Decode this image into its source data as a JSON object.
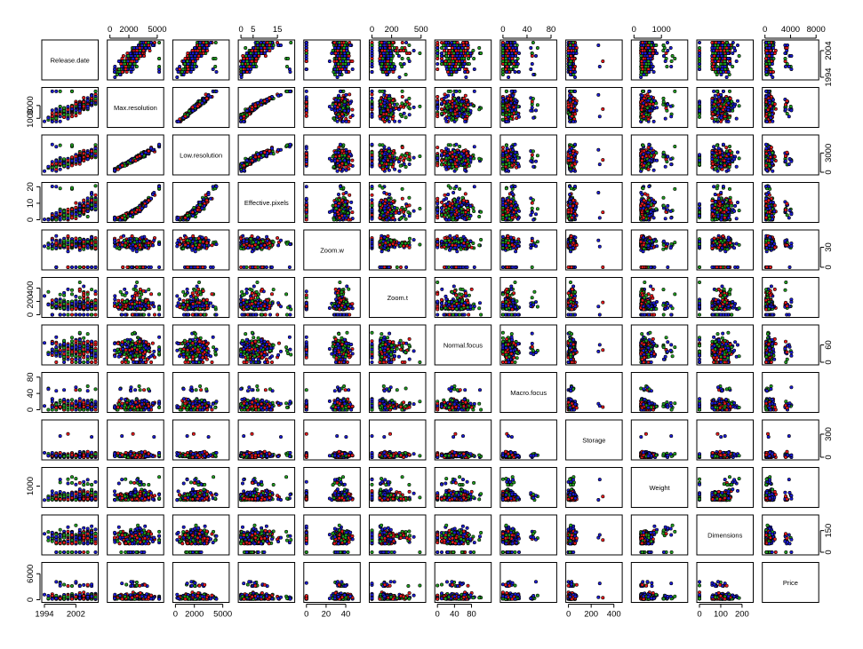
{
  "chart_data": {
    "type": "scatter",
    "kind": "scatterplot-matrix",
    "variables": [
      "Release.date",
      "Max.resolution",
      "Low.resolution",
      "Effective.pixels",
      "Zoom.w",
      "Zoom.t",
      "Normal.focus",
      "Macro.focus",
      "Storage",
      "Weight",
      "Dimensions",
      "Price"
    ],
    "ranges": [
      [
        1994,
        2007
      ],
      [
        0,
        5400
      ],
      [
        0,
        5400
      ],
      [
        0,
        21
      ],
      [
        0,
        52
      ],
      [
        0,
        520
      ],
      [
        0,
        120
      ],
      [
        0,
        85
      ],
      [
        0,
        450
      ],
      [
        0,
        1860
      ],
      [
        0,
        240
      ],
      [
        0,
        8000
      ]
    ],
    "axis_ticks": {
      "top": [
        {
          "column": 1,
          "ticks": [
            0,
            2000,
            5000
          ]
        },
        {
          "column": 3,
          "ticks": [
            0,
            5,
            15
          ]
        },
        {
          "column": 5,
          "ticks": [
            0,
            200,
            500
          ]
        },
        {
          "column": 7,
          "ticks": [
            0,
            40,
            80
          ]
        },
        {
          "column": 9,
          "ticks": [
            0,
            1000
          ]
        },
        {
          "column": 11,
          "ticks": [
            0,
            4000,
            8000
          ]
        }
      ],
      "bottom": [
        {
          "column": 0,
          "ticks": [
            1994,
            2002
          ]
        },
        {
          "column": 2,
          "ticks": [
            0,
            2000,
            5000
          ]
        },
        {
          "column": 4,
          "ticks": [
            0,
            20,
            40
          ]
        },
        {
          "column": 6,
          "ticks": [
            0,
            40,
            80
          ]
        },
        {
          "column": 8,
          "ticks": [
            0,
            200,
            400
          ]
        },
        {
          "column": 10,
          "ticks": [
            0,
            100,
            200
          ]
        }
      ],
      "left": [
        {
          "row": 1,
          "ticks": [
            1000,
            3000
          ]
        },
        {
          "row": 3,
          "ticks": [
            0,
            10,
            20
          ]
        },
        {
          "row": 5,
          "ticks": [
            0,
            200,
            400
          ]
        },
        {
          "row": 7,
          "ticks": [
            0,
            40,
            80
          ]
        },
        {
          "row": 9,
          "ticks": [
            1000
          ]
        },
        {
          "row": 11,
          "ticks": [
            0,
            6000
          ]
        }
      ],
      "right": [
        {
          "row": 0,
          "ticks": [
            1994,
            2004
          ]
        },
        {
          "row": 2,
          "ticks": [
            0,
            3000
          ]
        },
        {
          "row": 4,
          "ticks": [
            0,
            30
          ]
        },
        {
          "row": 6,
          "ticks": [
            0,
            60
          ]
        },
        {
          "row": 8,
          "ticks": [
            0,
            300
          ]
        },
        {
          "row": 10,
          "ticks": [
            0,
            150
          ]
        }
      ]
    },
    "groups": [
      {
        "color": "#e8191c"
      },
      {
        "color": "#1f9e1f"
      },
      {
        "color": "#1b1bd6"
      }
    ],
    "grid": false,
    "legend": "none"
  }
}
